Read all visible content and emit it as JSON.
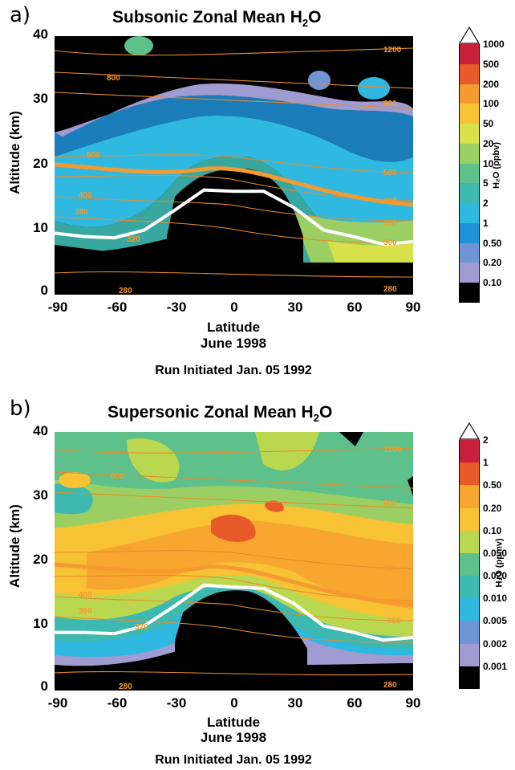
{
  "chart_data": [
    {
      "panel": "a)",
      "type": "heatmap",
      "title": "Subsonic Zonal Mean H",
      "title_sub": "2",
      "title_tail": "O",
      "xlabel": "Latitude",
      "xlabel2": "June 1998",
      "ylabel": "Altitude (km)",
      "note": "Run Initiated Jan. 05 1992",
      "xlim": [
        -90,
        90
      ],
      "ylim": [
        0,
        40
      ],
      "xticks": [
        "-90",
        "-60",
        "-30",
        "0",
        "30",
        "60",
        "90"
      ],
      "yticks": [
        "0",
        "10",
        "20",
        "30",
        "40"
      ],
      "colorbar_title": "H₂O (ppbv)",
      "colorbar_levels": [
        "1000",
        "500",
        "200",
        "100",
        "50",
        "20",
        "10",
        "5",
        "2",
        "1",
        "0.50",
        "0.20",
        "0.10"
      ],
      "colorbar_colors": [
        "#c8203a",
        "#e85a2a",
        "#f49a30",
        "#f7c234",
        "#d8e04a",
        "#9ccf63",
        "#5ec08a",
        "#3eb9b0",
        "#2fb8e0",
        "#1f92d8",
        "#6f95d6",
        "#a09bd0",
        "#000000"
      ],
      "contour_labels": [
        "1200",
        "800",
        "800",
        "500",
        "500",
        "400",
        "400",
        "380",
        "360",
        "320",
        "300",
        "280",
        "280"
      ],
      "tropopause": [
        [
          -90,
          9.5
        ],
        [
          -75,
          9.0
        ],
        [
          -60,
          8.8
        ],
        [
          -45,
          10.0
        ],
        [
          -30,
          13.0
        ],
        [
          -15,
          16.2
        ],
        [
          0,
          16.0
        ],
        [
          15,
          16.0
        ],
        [
          30,
          13.5
        ],
        [
          45,
          10.0
        ],
        [
          60,
          9.0
        ],
        [
          75,
          7.8
        ],
        [
          90,
          8.2
        ]
      ]
    },
    {
      "panel": "b)",
      "type": "heatmap",
      "title": "Supersonic Zonal Mean H",
      "title_sub": "2",
      "title_tail": "O",
      "xlabel": "Latitude",
      "xlabel2": "June 1998",
      "ylabel": "Altitude (km)",
      "note": "Run Initiated Jan. 05 1992",
      "xlim": [
        -90,
        90
      ],
      "ylim": [
        0,
        40
      ],
      "xticks": [
        "-90",
        "-60",
        "-30",
        "0",
        "30",
        "60",
        "90"
      ],
      "yticks": [
        "0",
        "10",
        "20",
        "30",
        "40"
      ],
      "colorbar_title": "H₂O (ppmv)",
      "colorbar_levels": [
        "2",
        "1",
        "0.50",
        "0.20",
        "0.10",
        "0.050",
        "0.020",
        "0.010",
        "0.005",
        "0.002",
        "0.001"
      ],
      "colorbar_colors": [
        "#c8203a",
        "#e85a2a",
        "#f7a730",
        "#f7c234",
        "#b9d84f",
        "#5ec08a",
        "#3eb9b0",
        "#2fb8e0",
        "#6f95d6",
        "#a09bd0",
        "#000000"
      ],
      "contour_labels": [
        "1200",
        "800",
        "800",
        "500",
        "500",
        "400",
        "400",
        "360",
        "360",
        "320",
        "280",
        "280"
      ],
      "tropopause": [
        [
          -90,
          9.0
        ],
        [
          -75,
          9.0
        ],
        [
          -60,
          8.8
        ],
        [
          -45,
          10.0
        ],
        [
          -30,
          13.0
        ],
        [
          -15,
          16.3
        ],
        [
          0,
          16.0
        ],
        [
          15,
          15.8
        ],
        [
          30,
          13.5
        ],
        [
          45,
          10.0
        ],
        [
          60,
          9.0
        ],
        [
          75,
          7.8
        ],
        [
          90,
          8.2
        ]
      ]
    }
  ]
}
